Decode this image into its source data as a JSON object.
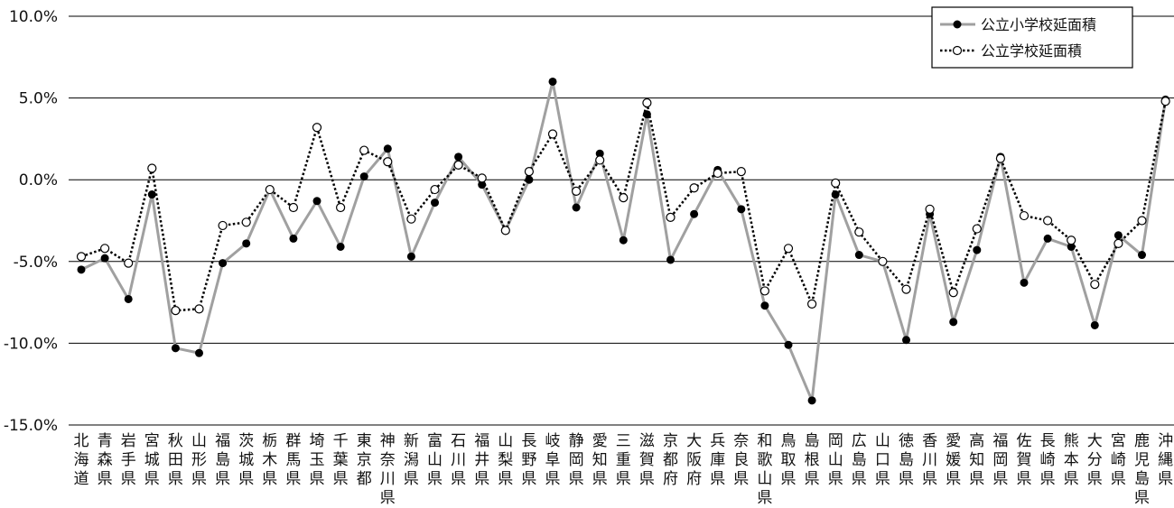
{
  "chart_data": {
    "type": "line",
    "title": "",
    "xlabel": "",
    "ylabel": "",
    "ylim": [
      -15,
      10
    ],
    "yticks": [
      10,
      5,
      0,
      -5,
      -10,
      -15
    ],
    "ytick_labels": [
      "10.0%",
      "5.0%",
      "0.0%",
      "-5.0%",
      "-10.0%",
      "-15.0%"
    ],
    "gridlines": true,
    "legend_position": "top-right",
    "categories": [
      "北海道",
      "青森県",
      "岩手県",
      "宮城県",
      "秋田県",
      "山形県",
      "福島県",
      "茨城県",
      "栃木県",
      "群馬県",
      "埼玉県",
      "千葉県",
      "東京都",
      "神奈川県",
      "新潟県",
      "富山県",
      "石川県",
      "福井県",
      "山梨県",
      "長野県",
      "岐阜県",
      "静岡県",
      "愛知県",
      "三重県",
      "滋賀県",
      "京都府",
      "大阪府",
      "兵庫県",
      "奈良県",
      "和歌山県",
      "鳥取県",
      "島根県",
      "岡山県",
      "広島県",
      "山口県",
      "徳島県",
      "香川県",
      "愛媛県",
      "高知県",
      "福岡県",
      "佐賀県",
      "長崎県",
      "熊本県",
      "大分県",
      "宮崎県",
      "鹿児島県",
      "沖縄県"
    ],
    "series": [
      {
        "name": "公立小学校延面積",
        "color": "#a0a0a0",
        "marker": "filled-circle",
        "values": [
          -5.5,
          -4.8,
          -7.3,
          -0.9,
          -10.3,
          -10.6,
          -5.1,
          -3.9,
          -0.6,
          -3.6,
          -1.3,
          -4.1,
          0.2,
          1.9,
          -4.7,
          -1.4,
          1.4,
          -0.3,
          -3.1,
          0.0,
          6.0,
          -1.7,
          1.6,
          -3.7,
          4.0,
          -4.9,
          -2.1,
          0.6,
          -1.8,
          -7.7,
          -10.1,
          -13.5,
          -0.9,
          -4.6,
          -5.0,
          -9.8,
          -2.1,
          -8.7,
          -4.3,
          1.4,
          -6.3,
          -3.6,
          -4.1,
          -8.9,
          -3.4,
          -4.6,
          4.9
        ]
      },
      {
        "name": "公立学校延面積",
        "color": "#000000",
        "marker": "open-circle",
        "values": [
          -4.7,
          -4.2,
          -5.1,
          0.7,
          -8.0,
          -7.9,
          -2.8,
          -2.6,
          -0.6,
          -1.7,
          3.2,
          -1.7,
          1.8,
          1.1,
          -2.4,
          -0.6,
          0.9,
          0.1,
          -3.1,
          0.5,
          2.8,
          -0.7,
          1.2,
          -1.1,
          4.7,
          -2.3,
          -0.5,
          0.4,
          0.5,
          -6.8,
          -4.2,
          -7.6,
          -0.2,
          -3.2,
          -5.0,
          -6.7,
          -1.8,
          -6.9,
          -3.0,
          1.3,
          -2.2,
          -2.5,
          -3.7,
          -6.4,
          -3.9,
          -2.5,
          4.8
        ]
      }
    ]
  }
}
